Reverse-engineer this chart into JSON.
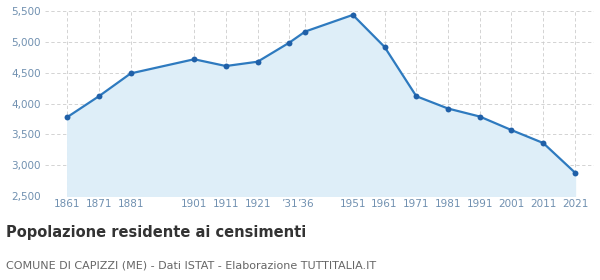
{
  "years": [
    1861,
    1871,
    1881,
    1901,
    1911,
    1921,
    1931,
    1936,
    1951,
    1961,
    1971,
    1981,
    1991,
    2001,
    2011,
    2021
  ],
  "population": [
    3780,
    4120,
    4490,
    4720,
    4610,
    4680,
    4990,
    5170,
    5440,
    4920,
    4120,
    3920,
    3790,
    3570,
    3360,
    2880
  ],
  "line_color": "#2e7abf",
  "fill_color": "#deeef8",
  "marker_color": "#2060a8",
  "grid_color": "#cccccc",
  "background_color": "#ffffff",
  "ylim": [
    2500,
    5500
  ],
  "yticks": [
    2500,
    3000,
    3500,
    4000,
    4500,
    5000,
    5500
  ],
  "xlim_left": 1854,
  "xlim_right": 2027,
  "tick_label_color": "#7090b0",
  "title": "Popolazione residente ai censimenti",
  "subtitle": "COMUNE DI CAPIZZI (ME) - Dati ISTAT - Elaborazione TUTTITALIA.IT",
  "title_fontsize": 10.5,
  "subtitle_fontsize": 8.0,
  "title_color": "#333333",
  "subtitle_color": "#666666"
}
